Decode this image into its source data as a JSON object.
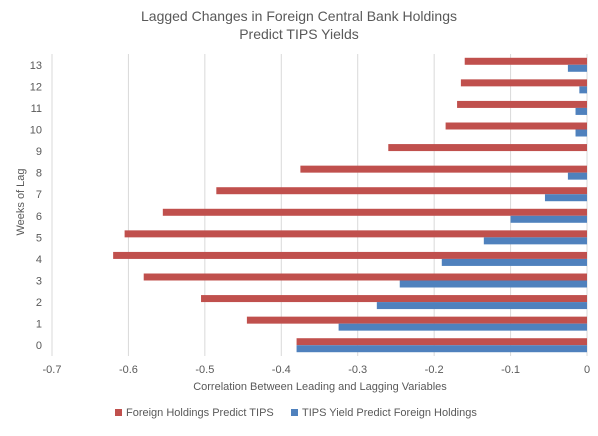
{
  "chart_data": {
    "type": "bar",
    "orientation": "horizontal",
    "title": [
      "Lagged Changes in Foreign Central Bank Holdings",
      "Predict TIPS Yields"
    ],
    "xlabel": "Correlation Between Leading and Lagging Variables",
    "ylabel": "Weeks of Lag",
    "xlim": [
      -0.7,
      0
    ],
    "x_ticks": [
      -0.7,
      -0.6,
      -0.5,
      -0.4,
      -0.3,
      -0.2,
      -0.1,
      0
    ],
    "categories": [
      "0",
      "1",
      "2",
      "3",
      "4",
      "5",
      "6",
      "7",
      "8",
      "9",
      "10",
      "11",
      "12",
      "13"
    ],
    "grid": "vertical",
    "legend_position": "bottom",
    "series": [
      {
        "name": "Foreign Holdings Predict TIPS",
        "color": "#c0504d",
        "values": [
          -0.38,
          -0.445,
          -0.505,
          -0.58,
          -0.62,
          -0.605,
          -0.555,
          -0.485,
          -0.375,
          -0.26,
          -0.185,
          -0.17,
          -0.165,
          -0.16
        ]
      },
      {
        "name": "TIPS Yield Predict Foreign Holdings",
        "color": "#4f81bd",
        "values": [
          -0.38,
          -0.325,
          -0.275,
          -0.245,
          -0.19,
          -0.135,
          -0.1,
          -0.055,
          -0.025,
          0,
          -0.015,
          -0.015,
          -0.01,
          -0.025
        ]
      }
    ]
  }
}
